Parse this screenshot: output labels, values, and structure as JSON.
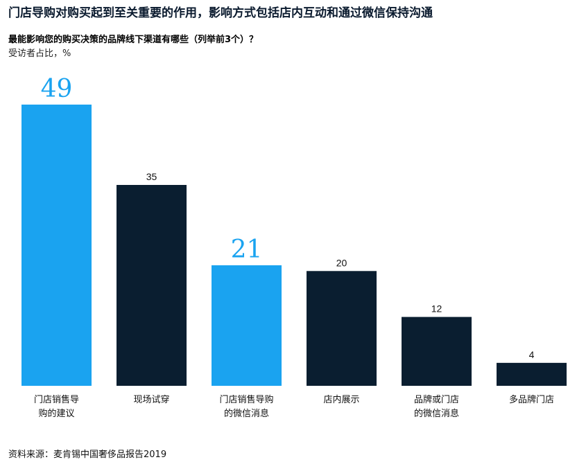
{
  "headline": "门店导购对购买起到至关重要的作用，影响方式包括店内互动和通过微信保持沟通",
  "source": "资料来源：麦肯锡中国奢侈品报告2019",
  "chart_data": {
    "type": "bar",
    "title": "最能影响您的购买决策的品牌线下渠道有哪些（列举前3个）？",
    "ylabel": "受访者占比，%",
    "xlabel": "",
    "categories": [
      [
        "门店销售导",
        "购的建议"
      ],
      [
        "现场试穿"
      ],
      [
        "门店销售导购",
        "的微信消息"
      ],
      [
        "店内展示"
      ],
      [
        "品牌或门店",
        "的微信消息"
      ],
      [
        "多品牌门店"
      ]
    ],
    "values": [
      49,
      35,
      21,
      20,
      12,
      4
    ],
    "highlight": [
      true,
      false,
      true,
      false,
      false,
      false
    ],
    "ylim": [
      0,
      49
    ],
    "grid": false,
    "legend": "none",
    "colors": {
      "highlight": "#1aa3f0",
      "default": "#0a1e30"
    }
  }
}
